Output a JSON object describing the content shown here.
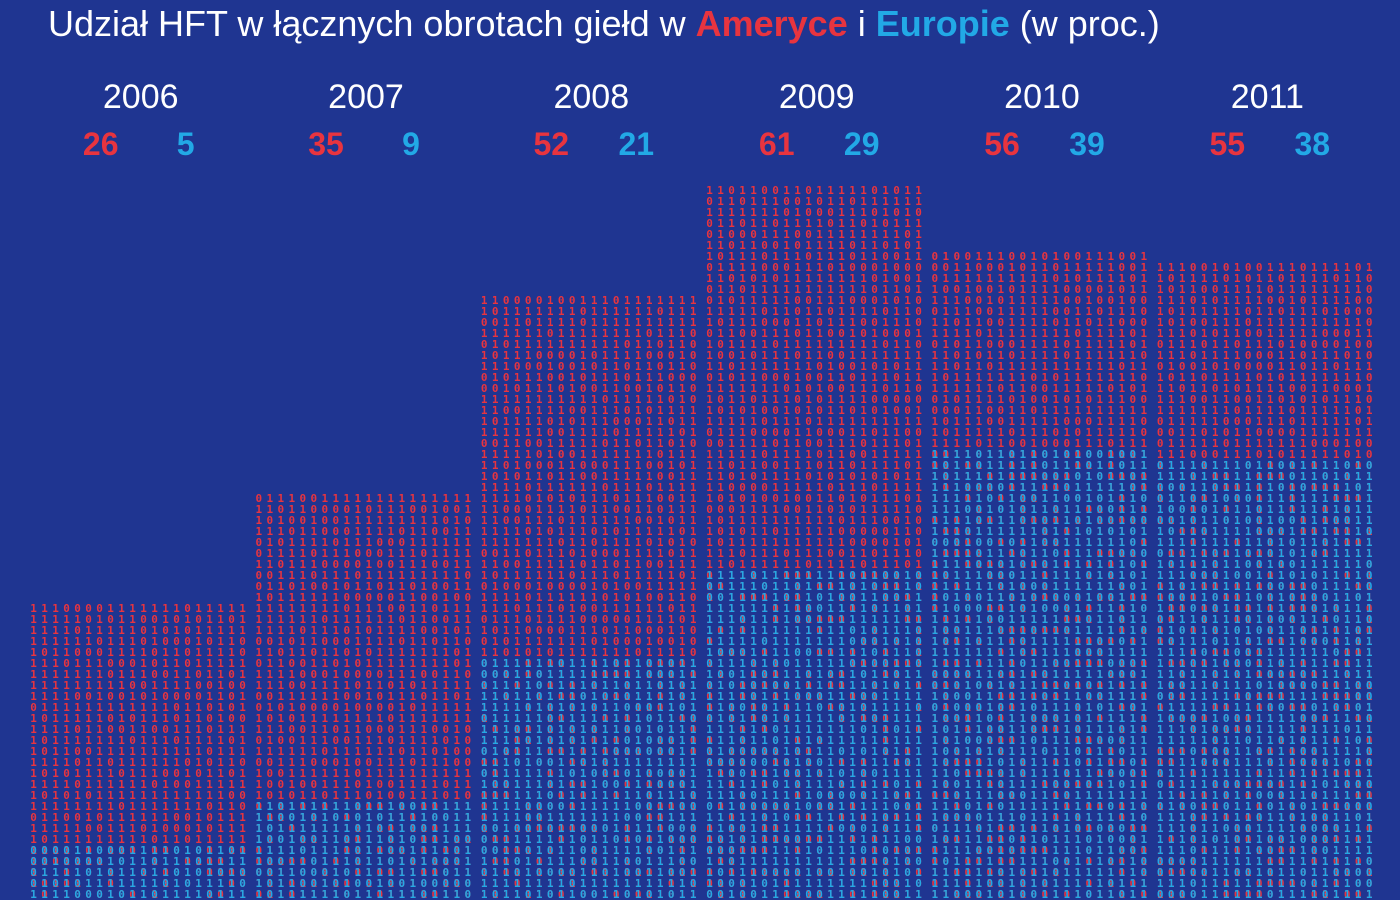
{
  "title": {
    "prefix": "Udział HFT w łącznych obrotach giełd w ",
    "america": "Ameryce",
    "connector": " i ",
    "europe": "Europie",
    "suffix": " (w proc.)"
  },
  "colors": {
    "background": "#1f3591",
    "america": "#e8343f",
    "europe": "#22a9e6",
    "text": "#ffffff"
  },
  "chart_data": {
    "type": "bar",
    "categories": [
      "2006",
      "2007",
      "2008",
      "2009",
      "2010",
      "2011"
    ],
    "series": [
      {
        "name": "Ameryce",
        "values": [
          26,
          35,
          52,
          61,
          56,
          55
        ]
      },
      {
        "name": "Europie",
        "values": [
          5,
          9,
          21,
          29,
          39,
          38
        ]
      }
    ],
    "mark_style": "binary digits 0/1 stacked in columns",
    "xlabel": "",
    "ylabel": "",
    "grid": false
  }
}
